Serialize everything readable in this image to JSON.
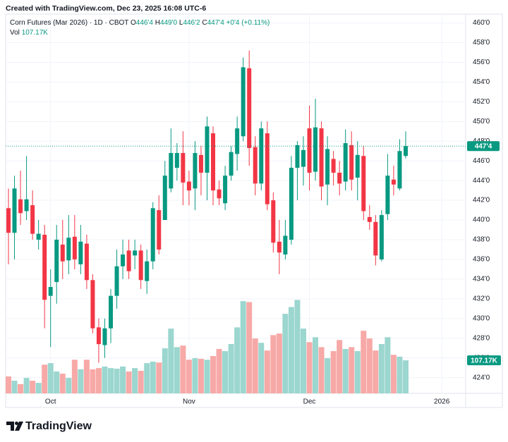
{
  "credit": "Created with TradingView.com, Dec 23, 2025 16:08 UTC-6",
  "footer": {
    "brand": "TradingView"
  },
  "chart_data": {
    "type": "candlestick",
    "symbol": "Corn Futures (Mar 2026) · 1D · CBOT",
    "ohlc_legend": [
      {
        "label": "O",
        "value": "446'4"
      },
      {
        "label": "H",
        "value": "449'0"
      },
      {
        "label": "L",
        "value": "446'2"
      },
      {
        "label": "C",
        "value": "447'4"
      }
    ],
    "change": "+0'4 (+0.11%)",
    "volume_title": "Vol",
    "volume_label": "107.17K",
    "up_color": "#089981",
    "down_color": "#f23645",
    "volume_up_color": "#9bd6cf",
    "volume_down_color": "#f7a9a7",
    "categories": [
      null,
      null,
      null,
      null,
      null,
      null,
      null,
      "Oct",
      null,
      null,
      null,
      null,
      null,
      null,
      null,
      null,
      null,
      null,
      null,
      null,
      null,
      null,
      null,
      null,
      null,
      null,
      null,
      null,
      null,
      null,
      "Nov",
      null,
      null,
      null,
      null,
      null,
      null,
      null,
      null,
      null,
      null,
      null,
      null,
      null,
      null,
      null,
      null,
      null,
      null,
      null,
      "Dec",
      null,
      null,
      null,
      null,
      null,
      null,
      null,
      null,
      null,
      null,
      null,
      null,
      null,
      null,
      null,
      null,
      null,
      null,
      null,
      null,
      null,
      "2026",
      null,
      null,
      null
    ],
    "open": [
      441.2,
      438.7,
      442.1,
      440.9,
      441.5,
      438,
      438.5,
      432.3,
      433.7,
      437.5,
      435.9,
      438.3,
      435.5,
      437.6,
      433.9,
      429.1,
      427.3,
      429,
      432.3,
      435.3,
      436.9,
      436.4,
      436.9,
      433.8,
      435.8,
      441,
      440,
      443.2,
      445.3,
      446.8,
      443.9,
      443.2,
      446.6,
      444.8,
      448.8,
      443.1,
      441.7,
      444.5,
      446.7,
      448.5,
      455.4,
      447.4,
      443.7,
      448.8,
      442,
      437.8,
      436.5,
      438,
      445.3,
      445.4,
      449.3,
      444.9,
      449.3,
      443.6,
      446.2,
      444.8,
      443.9,
      447.6,
      444.3,
      446.5,
      440.3,
      439.8,
      436,
      440.6,
      444.1,
      443.2,
      446.5,
      null,
      null,
      null,
      null,
      null,
      null,
      null,
      null,
      null
    ],
    "high": [
      443.2,
      444.5,
      445,
      446.5,
      443,
      440,
      439.5,
      435,
      439.5,
      440,
      440.5,
      440.5,
      439.5,
      438.5,
      434.5,
      430,
      430,
      433,
      437,
      438,
      438,
      438,
      437.5,
      437,
      441.8,
      442.5,
      446,
      449.3,
      447.8,
      449,
      445,
      448,
      447.5,
      450.5,
      449.5,
      444,
      445.5,
      447.5,
      450.5,
      456.5,
      457.2,
      448.5,
      450,
      450,
      442.8,
      440,
      440,
      446.5,
      448,
      448.5,
      451.6,
      452.3,
      450,
      448.5,
      447,
      446,
      449.2,
      449,
      448,
      447.5,
      441.5,
      440.5,
      441,
      446.7,
      445.5,
      448.2,
      449,
      null,
      null,
      null,
      null,
      null,
      null,
      null,
      null,
      null
    ],
    "low": [
      435.5,
      436,
      439.5,
      440,
      438,
      437,
      429,
      427.1,
      431.5,
      434,
      434.5,
      435,
      434.5,
      433,
      428.5,
      425.5,
      426,
      427.5,
      431,
      434,
      434,
      435,
      433,
      432.5,
      435,
      436.5,
      440,
      442.8,
      444,
      441.5,
      441.5,
      441,
      442.5,
      442,
      441.5,
      441.5,
      441,
      444,
      445,
      448,
      445.5,
      442.5,
      443,
      441,
      436.7,
      434.5,
      436,
      437.5,
      442,
      443.5,
      443,
      444,
      442,
      441.5,
      443.5,
      442.5,
      443,
      443,
      442,
      440,
      439,
      435.4,
      435.8,
      440,
      442.5,
      443,
      446.25,
      null,
      null,
      null,
      null,
      null,
      null,
      null,
      null,
      null
    ],
    "close": [
      438.7,
      443.2,
      440.7,
      442.1,
      438.6,
      438.6,
      431.9,
      433.2,
      438,
      435.8,
      438.2,
      436,
      437.8,
      433.9,
      429,
      427.4,
      429,
      432.3,
      435.3,
      436.5,
      434.8,
      436.9,
      433.9,
      435.8,
      441.2,
      437,
      444.5,
      446.8,
      446.8,
      443.8,
      443,
      446.8,
      444.8,
      449.5,
      443,
      442.2,
      444.5,
      446.9,
      449.3,
      455.5,
      447.3,
      443.7,
      449.3,
      441.6,
      437.7,
      436.7,
      438.4,
      445.3,
      447.6,
      447.1,
      444.8,
      449.4,
      443.4,
      447.2,
      444.8,
      443.7,
      447.8,
      444.1,
      446.6,
      440.9,
      439.8,
      436.4,
      440.5,
      444.5,
      443.6,
      447,
      447.5,
      null,
      null,
      null,
      null,
      null,
      null,
      null,
      null,
      null
    ],
    "volume": [
      55,
      41,
      30,
      50,
      41,
      34,
      93,
      98,
      71,
      64,
      50,
      109,
      78,
      109,
      78,
      82,
      87,
      82,
      80,
      87,
      71,
      82,
      73,
      98,
      103,
      100,
      146,
      210,
      150,
      155,
      109,
      114,
      112,
      109,
      121,
      144,
      137,
      160,
      214,
      299,
      296,
      178,
      164,
      139,
      189,
      194,
      258,
      280,
      303,
      210,
      166,
      182,
      150,
      114,
      137,
      173,
      144,
      150,
      137,
      203,
      178,
      139,
      160,
      182,
      125,
      119,
      107.17,
      null,
      null,
      null,
      null,
      null,
      null,
      null,
      null,
      null
    ],
    "ylim": [
      422.4,
      460.9
    ],
    "vlim": [
      0,
      1230
    ],
    "yticks": [
      {
        "value": 424,
        "label": "424'0"
      },
      {
        "value": 426,
        "label": "426'0"
      },
      {
        "value": 428,
        "label": "428'0"
      },
      {
        "value": 430,
        "label": "430'0"
      },
      {
        "value": 432,
        "label": "432'0"
      },
      {
        "value": 434,
        "label": "434'0"
      },
      {
        "value": 436,
        "label": "436'0"
      },
      {
        "value": 438,
        "label": "438'0"
      },
      {
        "value": 440,
        "label": "440'0"
      },
      {
        "value": 442,
        "label": "442'0"
      },
      {
        "value": 444,
        "label": "444'0"
      },
      {
        "value": 446,
        "label": "446'0"
      },
      {
        "value": 448,
        "label": "448'0"
      },
      {
        "value": 450,
        "label": "450'0"
      },
      {
        "value": 452,
        "label": "452'0"
      },
      {
        "value": 454,
        "label": "454'0"
      },
      {
        "value": 456,
        "label": "456'0"
      },
      {
        "value": 458,
        "label": "458'0"
      },
      {
        "value": 460,
        "label": "460'0"
      }
    ],
    "last_price": {
      "value": 447.5,
      "label": "447'4"
    },
    "grid": true
  }
}
